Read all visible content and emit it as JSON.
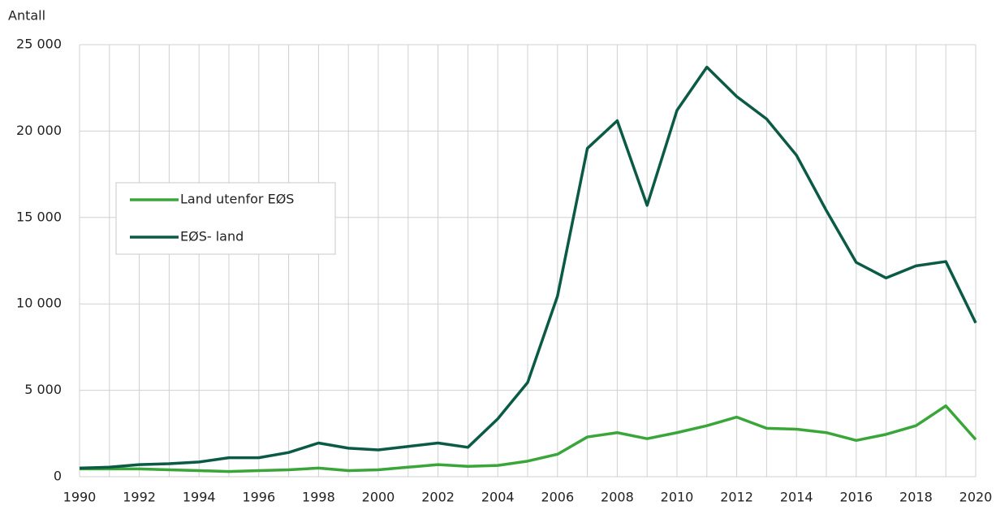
{
  "chart_data": {
    "type": "line",
    "y_label": "Antall",
    "x": [
      1990,
      1991,
      1992,
      1993,
      1994,
      1995,
      1996,
      1997,
      1998,
      1999,
      2000,
      2001,
      2002,
      2003,
      2004,
      2005,
      2006,
      2007,
      2008,
      2009,
      2010,
      2011,
      2012,
      2013,
      2014,
      2015,
      2016,
      2017,
      2018,
      2019,
      2020
    ],
    "series": [
      {
        "name": "Land utenfor EØS",
        "color": "#3aa63a",
        "values": [
          450,
          450,
          450,
          400,
          350,
          300,
          350,
          400,
          500,
          350,
          400,
          550,
          700,
          600,
          650,
          900,
          1300,
          2300,
          2550,
          2200,
          2550,
          2950,
          3450,
          2800,
          2750,
          2550,
          2100,
          2450,
          2950,
          4100,
          2150
        ]
      },
      {
        "name": "EØS- land",
        "color": "#0b5a45",
        "values": [
          500,
          550,
          700,
          750,
          850,
          1100,
          1100,
          1400,
          1950,
          1650,
          1550,
          1750,
          1950,
          1700,
          3350,
          5450,
          10450,
          19000,
          20600,
          15700,
          21200,
          23700,
          22000,
          20700,
          18600,
          15400,
          12400,
          11500,
          12200,
          12450,
          8900
        ]
      }
    ],
    "xlim": [
      1990,
      2020
    ],
    "xticks": [
      1990,
      1992,
      1994,
      1996,
      1998,
      2000,
      2002,
      2004,
      2006,
      2008,
      2010,
      2012,
      2014,
      2016,
      2018,
      2020
    ],
    "ylim": [
      0,
      25000
    ],
    "yticks": [
      0,
      {
        "value": 5000,
        "label": "5 000"
      },
      {
        "value": 10000,
        "label": "10 000"
      },
      {
        "value": 15000,
        "label": "15 000"
      },
      {
        "value": 20000,
        "label": "20 000"
      },
      {
        "value": 25000,
        "label": "25 000"
      }
    ],
    "grid": true
  }
}
